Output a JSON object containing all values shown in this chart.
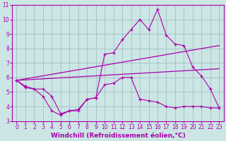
{
  "background_color": "#cce5e5",
  "line_color": "#aa00aa",
  "grid_color": "#99bbbb",
  "xlabel": "Windchill (Refroidissement éolien,°C)",
  "xlabel_fontsize": 6.5,
  "tick_fontsize": 5.5,
  "xlim": [
    -0.5,
    23.5
  ],
  "ylim": [
    3,
    11
  ],
  "yticks": [
    3,
    4,
    5,
    6,
    7,
    8,
    9,
    10,
    11
  ],
  "xticks": [
    0,
    1,
    2,
    3,
    4,
    5,
    6,
    7,
    8,
    9,
    10,
    11,
    12,
    13,
    14,
    15,
    16,
    17,
    18,
    19,
    20,
    21,
    22,
    23
  ],
  "series": {
    "upper_x": [
      0,
      1,
      2,
      3,
      4,
      5,
      6,
      7,
      8,
      9,
      10,
      11,
      12,
      13,
      14,
      15,
      16,
      17,
      18,
      19,
      20,
      21,
      22,
      23
    ],
    "upper_y": [
      5.8,
      5.4,
      5.2,
      5.2,
      4.7,
      3.5,
      3.7,
      3.8,
      4.5,
      4.6,
      7.6,
      7.7,
      8.6,
      9.3,
      10.0,
      9.3,
      10.7,
      8.9,
      8.3,
      8.2,
      6.7,
      6.1,
      5.2,
      3.9
    ],
    "lower_x": [
      0,
      1,
      2,
      3,
      4,
      5,
      6,
      7,
      8,
      9,
      10,
      11,
      12,
      13,
      14,
      15,
      16,
      17,
      18,
      19,
      20,
      21,
      22,
      23
    ],
    "lower_y": [
      5.8,
      5.3,
      5.2,
      4.7,
      3.7,
      3.4,
      3.7,
      3.7,
      4.5,
      4.6,
      5.5,
      5.6,
      6.0,
      6.0,
      4.5,
      4.4,
      4.3,
      4.0,
      3.9,
      4.0,
      4.0,
      4.0,
      3.9,
      3.9
    ],
    "trend1_x": [
      0,
      23
    ],
    "trend1_y": [
      5.8,
      8.2
    ],
    "trend2_x": [
      0,
      23
    ],
    "trend2_y": [
      5.8,
      6.6
    ]
  }
}
